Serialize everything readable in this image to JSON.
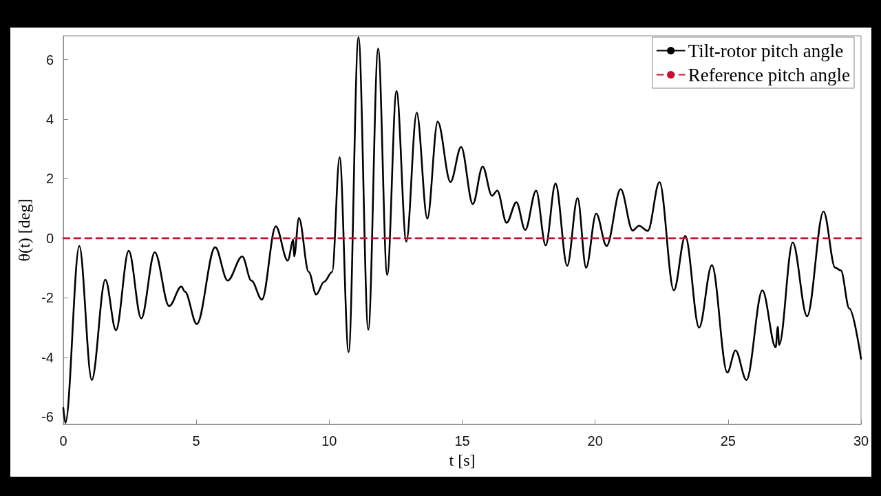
{
  "chart_data": {
    "type": "line",
    "xlabel": "t [s]",
    "ylabel": "θ(t) [deg]",
    "xlim": [
      0,
      30
    ],
    "xticks": [
      0,
      5,
      10,
      15,
      20,
      25,
      30
    ],
    "ylim": [
      -6.25,
      6.8
    ],
    "yticks": [
      -6,
      -4,
      -2,
      0,
      2,
      4,
      6
    ],
    "grid": false,
    "legend": "top right",
    "marker": "none",
    "series": [
      {
        "name": "Tilt-rotor pitch angle",
        "color": "#000000",
        "line_style": "solid",
        "x": [
          0,
          0.08,
          0.6,
          1.07,
          1.58,
          1.98,
          2.46,
          2.93,
          3.44,
          3.98,
          4.44,
          4.57,
          5.02,
          5.71,
          6.18,
          6.73,
          7.07,
          7.47,
          7.99,
          8.44,
          8.65,
          8.68,
          8.86,
          9.23,
          9.51,
          9.81,
          10.11,
          10.39,
          10.73,
          11.1,
          11.47,
          11.84,
          12.18,
          12.53,
          12.9,
          13.29,
          13.69,
          14.08,
          14.56,
          14.96,
          15.4,
          15.77,
          16.12,
          16.32,
          16.67,
          17.04,
          17.37,
          17.78,
          18.14,
          18.51,
          18.95,
          19.34,
          19.66,
          20.04,
          20.43,
          20.96,
          21.41,
          21.65,
          21.98,
          22.42,
          22.96,
          23.39,
          23.91,
          24.39,
          24.97,
          25.28,
          25.69,
          26.29,
          26.79,
          26.87,
          26.92,
          27.43,
          27.97,
          28.59,
          29.03,
          29.24,
          29.56,
          30
        ],
        "values": [
          -5.7,
          -6.2,
          -0.26,
          -4.76,
          -1.39,
          -3.09,
          -0.42,
          -2.69,
          -0.47,
          -2.28,
          -1.62,
          -1.79,
          -2.88,
          -0.3,
          -1.42,
          -0.61,
          -1.42,
          -2.06,
          0.4,
          -0.75,
          -0.05,
          -0.61,
          0.68,
          -1.13,
          -1.89,
          -1.46,
          -1.13,
          2.72,
          -3.82,
          6.75,
          -3.07,
          6.37,
          -1.23,
          4.95,
          -0.11,
          4.22,
          0.66,
          3.92,
          1.89,
          3.07,
          1.15,
          2.41,
          1.43,
          1.6,
          0.52,
          1.21,
          0.28,
          1.6,
          -0.24,
          1.84,
          -0.92,
          1.35,
          -0.99,
          0.83,
          -0.26,
          1.65,
          0.26,
          0.42,
          0.25,
          1.89,
          -1.75,
          0.08,
          -3.0,
          -0.9,
          -4.51,
          -3.77,
          -4.76,
          -1.75,
          -3.66,
          -2.97,
          -3.58,
          -0.14,
          -2.62,
          0.9,
          -0.99,
          -1.08,
          -2.36,
          -4.05
        ]
      },
      {
        "name": "Reference pitch angle",
        "color": "#c8102e",
        "line_style": "dashed",
        "x": [
          0,
          30
        ],
        "values": [
          0,
          0
        ]
      }
    ]
  }
}
